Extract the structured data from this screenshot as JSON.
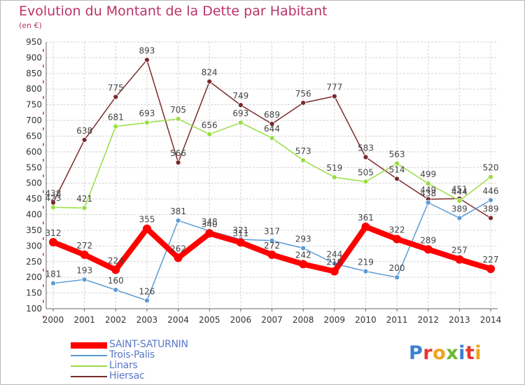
{
  "header": {
    "title": "Evolution du Montant de la Dette par Habitant",
    "unit": "(en €)"
  },
  "brand": {
    "logo_text": "Proxiti"
  },
  "colors": {
    "title": "#bb3366",
    "legend_text": "#5a78c8"
  },
  "chart_data": {
    "type": "line",
    "title": "Evolution du Montant de la Dette par Habitant",
    "subtitle": "(en €)",
    "xlabel": "",
    "ylabel": "",
    "x": [
      2000,
      2001,
      2002,
      2003,
      2004,
      2005,
      2006,
      2007,
      2008,
      2009,
      2010,
      2011,
      2012,
      2013,
      2014
    ],
    "ylim": [
      100,
      950
    ],
    "yticks": [
      100,
      150,
      200,
      250,
      300,
      350,
      400,
      450,
      500,
      550,
      600,
      650,
      700,
      750,
      800,
      850,
      900,
      950
    ],
    "grid": true,
    "legend_position": "bottom-left",
    "series": [
      {
        "name": "SAINT-SATURNIN",
        "color": "#ff0000",
        "values": [
          312,
          272,
          224,
          355,
          262,
          340,
          311,
          272,
          242,
          219,
          361,
          322,
          289,
          257,
          227
        ]
      },
      {
        "name": "Trois-Palis",
        "color": "#5b9bd5",
        "values": [
          181,
          193,
          160,
          126,
          381,
          348,
          321,
          317,
          293,
          244,
          219,
          200,
          438,
          389,
          446
        ]
      },
      {
        "name": "Linars",
        "color": "#99dd44",
        "values": [
          423,
          421,
          681,
          693,
          705,
          656,
          693,
          644,
          573,
          519,
          505,
          563,
          499,
          444,
          520
        ]
      },
      {
        "name": "Hiersac",
        "color": "#7a2a2a",
        "values": [
          438,
          638,
          775,
          893,
          566,
          824,
          749,
          689,
          756,
          777,
          583,
          514,
          449,
          451,
          389
        ]
      }
    ]
  }
}
